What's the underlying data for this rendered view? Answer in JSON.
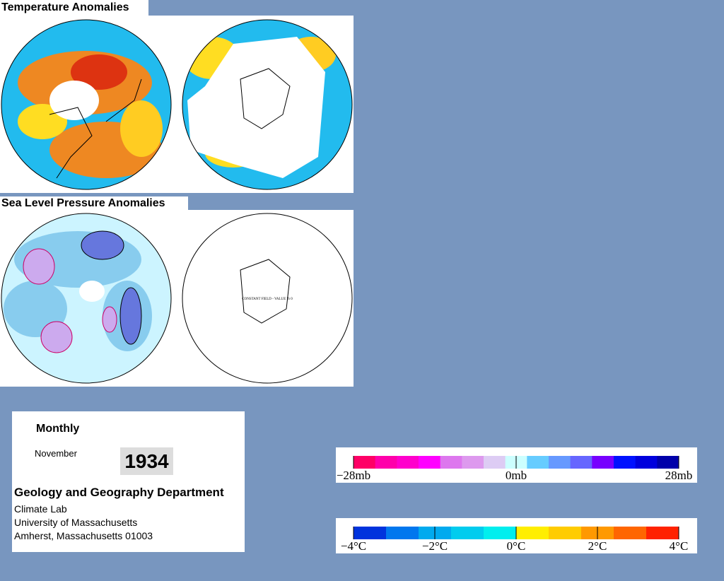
{
  "temperature_title": "Temperature Anomalies",
  "pressure_title": "Sea Level Pressure Anomalies",
  "constant_field_note": "CONSTANT FIELD - VALUE IS 0",
  "info": {
    "period": "Monthly",
    "month": "November",
    "year": "1934",
    "department": "Geology and Geography Department",
    "lines": [
      "Climate Lab",
      "University of Massachusetts",
      "Amherst, Massachusetts 01003"
    ]
  },
  "pressure_legend": {
    "labels": [
      "−28mb",
      "0mb",
      "28mb"
    ],
    "colors": [
      "#ff0066",
      "#ff00aa",
      "#ff00cc",
      "#ff00ff",
      "#dd77ee",
      "#dd99ee",
      "#ddccf4",
      "#ccffff",
      "#66ccff",
      "#6699ff",
      "#6666ff",
      "#7700ff",
      "#0011ff",
      "#0000dd",
      "#0000aa"
    ]
  },
  "temperature_legend": {
    "labels": [
      "−4°C",
      "−2°C",
      "0°C",
      "2°C",
      "4°C"
    ],
    "colors": [
      "#0033dd",
      "#0077ee",
      "#00aaee",
      "#00ccee",
      "#00eeee",
      "#ffee00",
      "#ffcc00",
      "#ff9900",
      "#ff6600",
      "#ff2200"
    ]
  }
}
